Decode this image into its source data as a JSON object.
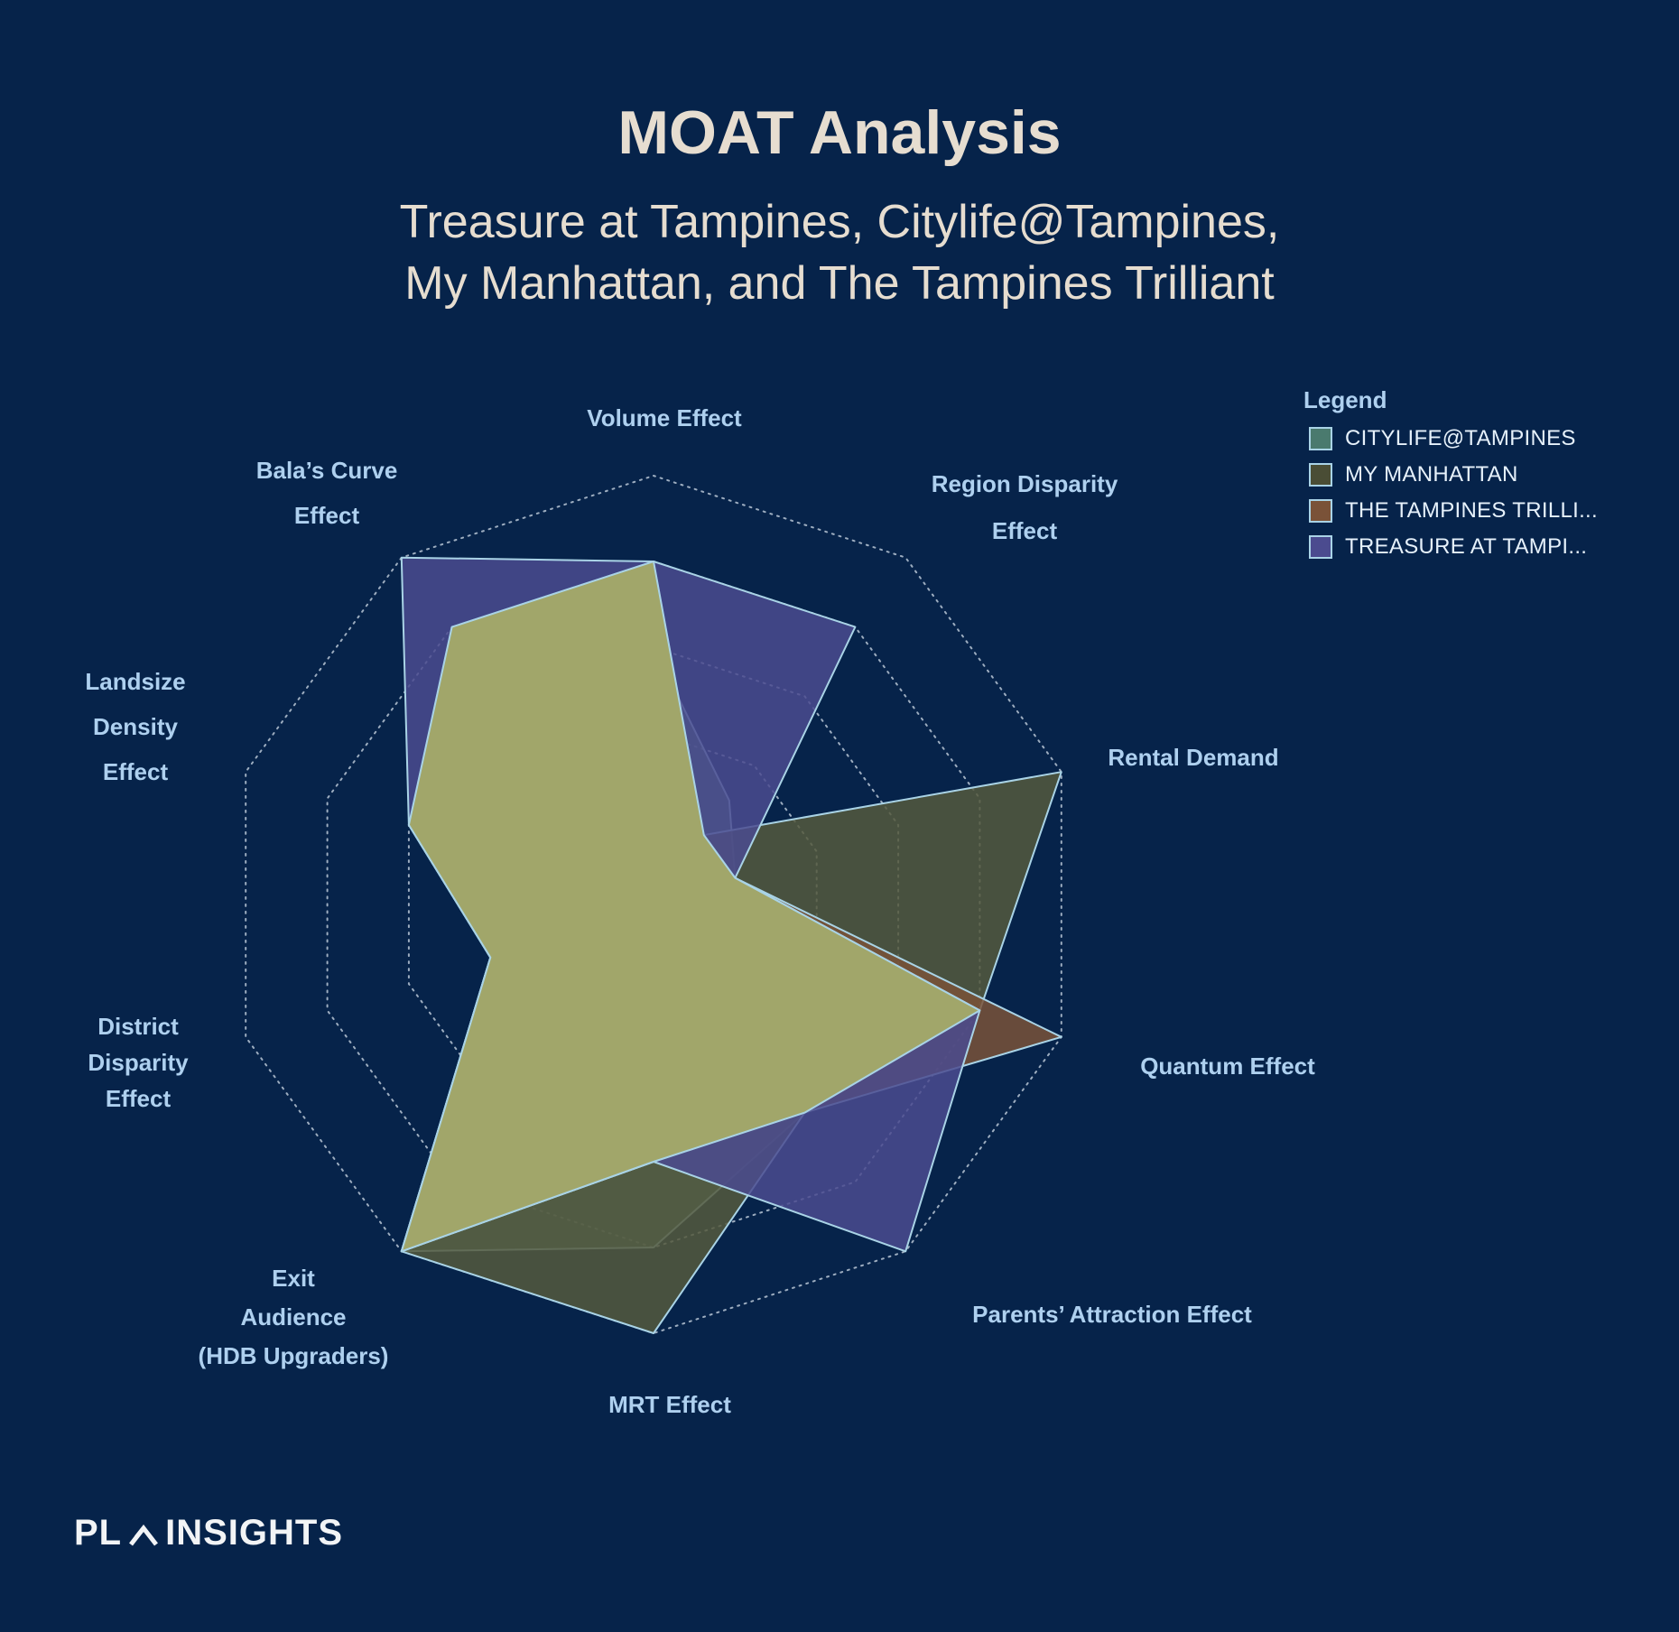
{
  "header": {
    "title": "MOAT Analysis",
    "subtitle_line1": "Treasure at Tampines, Citylife@Tampines,",
    "subtitle_line2": "My Manhattan, and The Tampines Trilliant"
  },
  "legend": {
    "title": "Legend",
    "items": [
      {
        "label": "CITYLIFE@TAMPINES",
        "color": "#4a7a6e"
      },
      {
        "label": "MY MANHATTAN",
        "color": "#4a4d35"
      },
      {
        "label": "THE TAMPINES TRILLI...",
        "color": "#7a5238"
      },
      {
        "label": "TREASURE AT TAMPI...",
        "color": "#4b4b8f"
      }
    ]
  },
  "branding": {
    "text_left": "PL",
    "text_right": "INSIGHTS"
  },
  "chart_data": {
    "type": "radar",
    "title": "MOAT Analysis",
    "axes": [
      "Volume Effect",
      "Region Disparity Effect",
      "Rental Demand",
      "Quantum Effect",
      "Parents’ Attraction Effect",
      "MRT Effect",
      "Exit Audience (HDB Upgraders)",
      "District Disparity Effect",
      "Landsize Density Effect",
      "Bala’s Curve Effect"
    ],
    "axis_label_lines": [
      [
        "Volume Effect"
      ],
      [
        "Region Disparity",
        "Effect"
      ],
      [
        "Rental Demand"
      ],
      [
        "Quantum Effect"
      ],
      [
        "Parents’ Attraction Effect"
      ],
      [
        "MRT Effect"
      ],
      [
        "Exit",
        "Audience",
        "(HDB Upgraders)"
      ],
      [
        "District",
        "Disparity",
        "Effect"
      ],
      [
        "Landsize",
        "Density",
        "Effect"
      ],
      [
        "Bala’s Curve",
        "Effect"
      ]
    ],
    "rlim": [
      0,
      5
    ],
    "rings": 5,
    "series": [
      {
        "name": "CITYLIFE@TAMPINES",
        "values": [
          3,
          1.5,
          1,
          4,
          3,
          4,
          5,
          2,
          3,
          4
        ],
        "fill": "#5f8a78",
        "fill_opacity": 0.65
      },
      {
        "name": "MY MANHATTAN",
        "values": [
          3,
          1,
          5,
          4,
          3,
          5,
          5,
          2,
          3,
          4
        ],
        "fill": "#55593d",
        "fill_opacity": 0.85
      },
      {
        "name": "THE TAMPINES TRILLIANT",
        "values": [
          4,
          1,
          1,
          5,
          3,
          3,
          5,
          2,
          3,
          4
        ],
        "fill": "#7a5238",
        "fill_opacity": 0.85
      },
      {
        "name": "TREASURE AT TAMPINES",
        "values": [
          4,
          4,
          1,
          4,
          5,
          3,
          5,
          2,
          3,
          5
        ],
        "fill": "#4b4b8f",
        "fill_opacity": 0.85
      }
    ],
    "top_layer": {
      "values": [
        4,
        1,
        1,
        4,
        3,
        3,
        5,
        2,
        3,
        4
      ],
      "fill": "#a8ae68",
      "fill_opacity": 0.92
    },
    "grid": true
  }
}
